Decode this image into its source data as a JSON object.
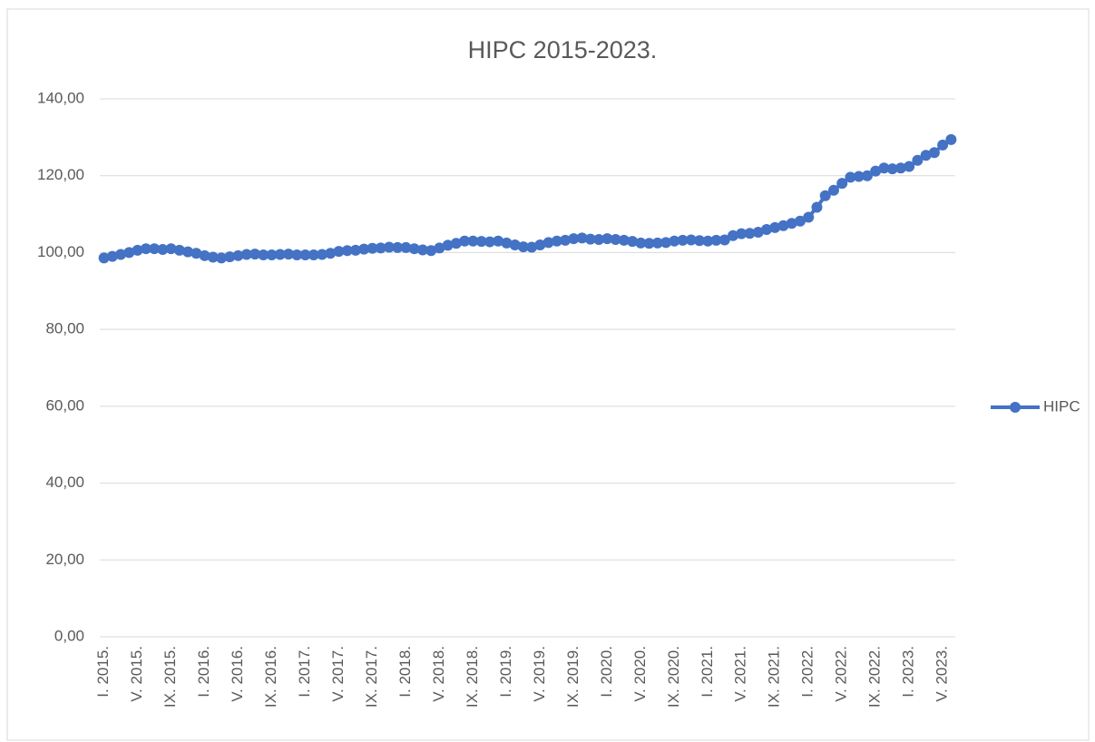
{
  "chart_data": {
    "type": "line",
    "title": "HIPC 2015-2023.",
    "categories": [
      "I. 2015.",
      null,
      null,
      null,
      "V. 2015.",
      null,
      null,
      null,
      "IX. 2015.",
      null,
      null,
      null,
      "I. 2016.",
      null,
      null,
      null,
      "V. 2016.",
      null,
      null,
      null,
      "IX. 2016.",
      null,
      null,
      null,
      "I. 2017.",
      null,
      null,
      null,
      "V. 2017.",
      null,
      null,
      null,
      "IX. 2017.",
      null,
      null,
      null,
      "I. 2018.",
      null,
      null,
      null,
      "V. 2018.",
      null,
      null,
      null,
      "IX. 2018.",
      null,
      null,
      null,
      "I. 2019.",
      null,
      null,
      null,
      "V. 2019.",
      null,
      null,
      null,
      "IX. 2019.",
      null,
      null,
      null,
      "I. 2020.",
      null,
      null,
      null,
      "V. 2020.",
      null,
      null,
      null,
      "IX. 2020.",
      null,
      null,
      null,
      "I. 2021.",
      null,
      null,
      null,
      "V. 2021.",
      null,
      null,
      null,
      "IX. 2021.",
      null,
      null,
      null,
      "I. 2022.",
      null,
      null,
      null,
      "V. 2022.",
      null,
      null,
      null,
      "IX. 2022.",
      null,
      null,
      null,
      "I. 2023.",
      null,
      null,
      null,
      "V. 2023.",
      null
    ],
    "series": [
      {
        "name": "HIPC",
        "color": "#4472c4",
        "values": [
          98.6,
          99.0,
          99.5,
          100.0,
          100.6,
          101.0,
          101.0,
          100.8,
          101.0,
          100.6,
          100.2,
          99.8,
          99.2,
          98.8,
          98.6,
          98.9,
          99.2,
          99.5,
          99.6,
          99.4,
          99.4,
          99.5,
          99.6,
          99.4,
          99.4,
          99.4,
          99.5,
          99.8,
          100.3,
          100.5,
          100.6,
          100.9,
          101.1,
          101.2,
          101.4,
          101.3,
          101.3,
          101.0,
          100.7,
          100.5,
          101.2,
          101.9,
          102.4,
          103.0,
          103.0,
          102.9,
          102.8,
          103.0,
          102.5,
          102.0,
          101.5,
          101.4,
          102.0,
          102.6,
          103.0,
          103.2,
          103.6,
          103.8,
          103.5,
          103.4,
          103.6,
          103.4,
          103.2,
          102.9,
          102.5,
          102.4,
          102.5,
          102.6,
          103.0,
          103.2,
          103.3,
          103.1,
          103.0,
          103.2,
          103.3,
          104.4,
          104.9,
          105.0,
          105.3,
          106.0,
          106.5,
          107.0,
          107.6,
          108.2,
          109.2,
          111.8,
          114.8,
          116.2,
          118.0,
          119.6,
          119.8,
          120.0,
          121.2,
          122.0,
          121.8,
          122.0,
          122.4,
          124.0,
          125.3,
          126.0,
          128.0,
          129.4
        ]
      }
    ],
    "ylim": [
      0,
      140
    ],
    "yticks": [
      {
        "value": 0,
        "label": "0,00"
      },
      {
        "value": 20,
        "label": "20,00"
      },
      {
        "value": 40,
        "label": "40,00"
      },
      {
        "value": 60,
        "label": "60,00"
      },
      {
        "value": 80,
        "label": "80,00"
      },
      {
        "value": 100,
        "label": "100,00"
      },
      {
        "value": 120,
        "label": "120,00"
      },
      {
        "value": 140,
        "label": "140,00"
      }
    ],
    "grid": true,
    "legend": "right"
  }
}
